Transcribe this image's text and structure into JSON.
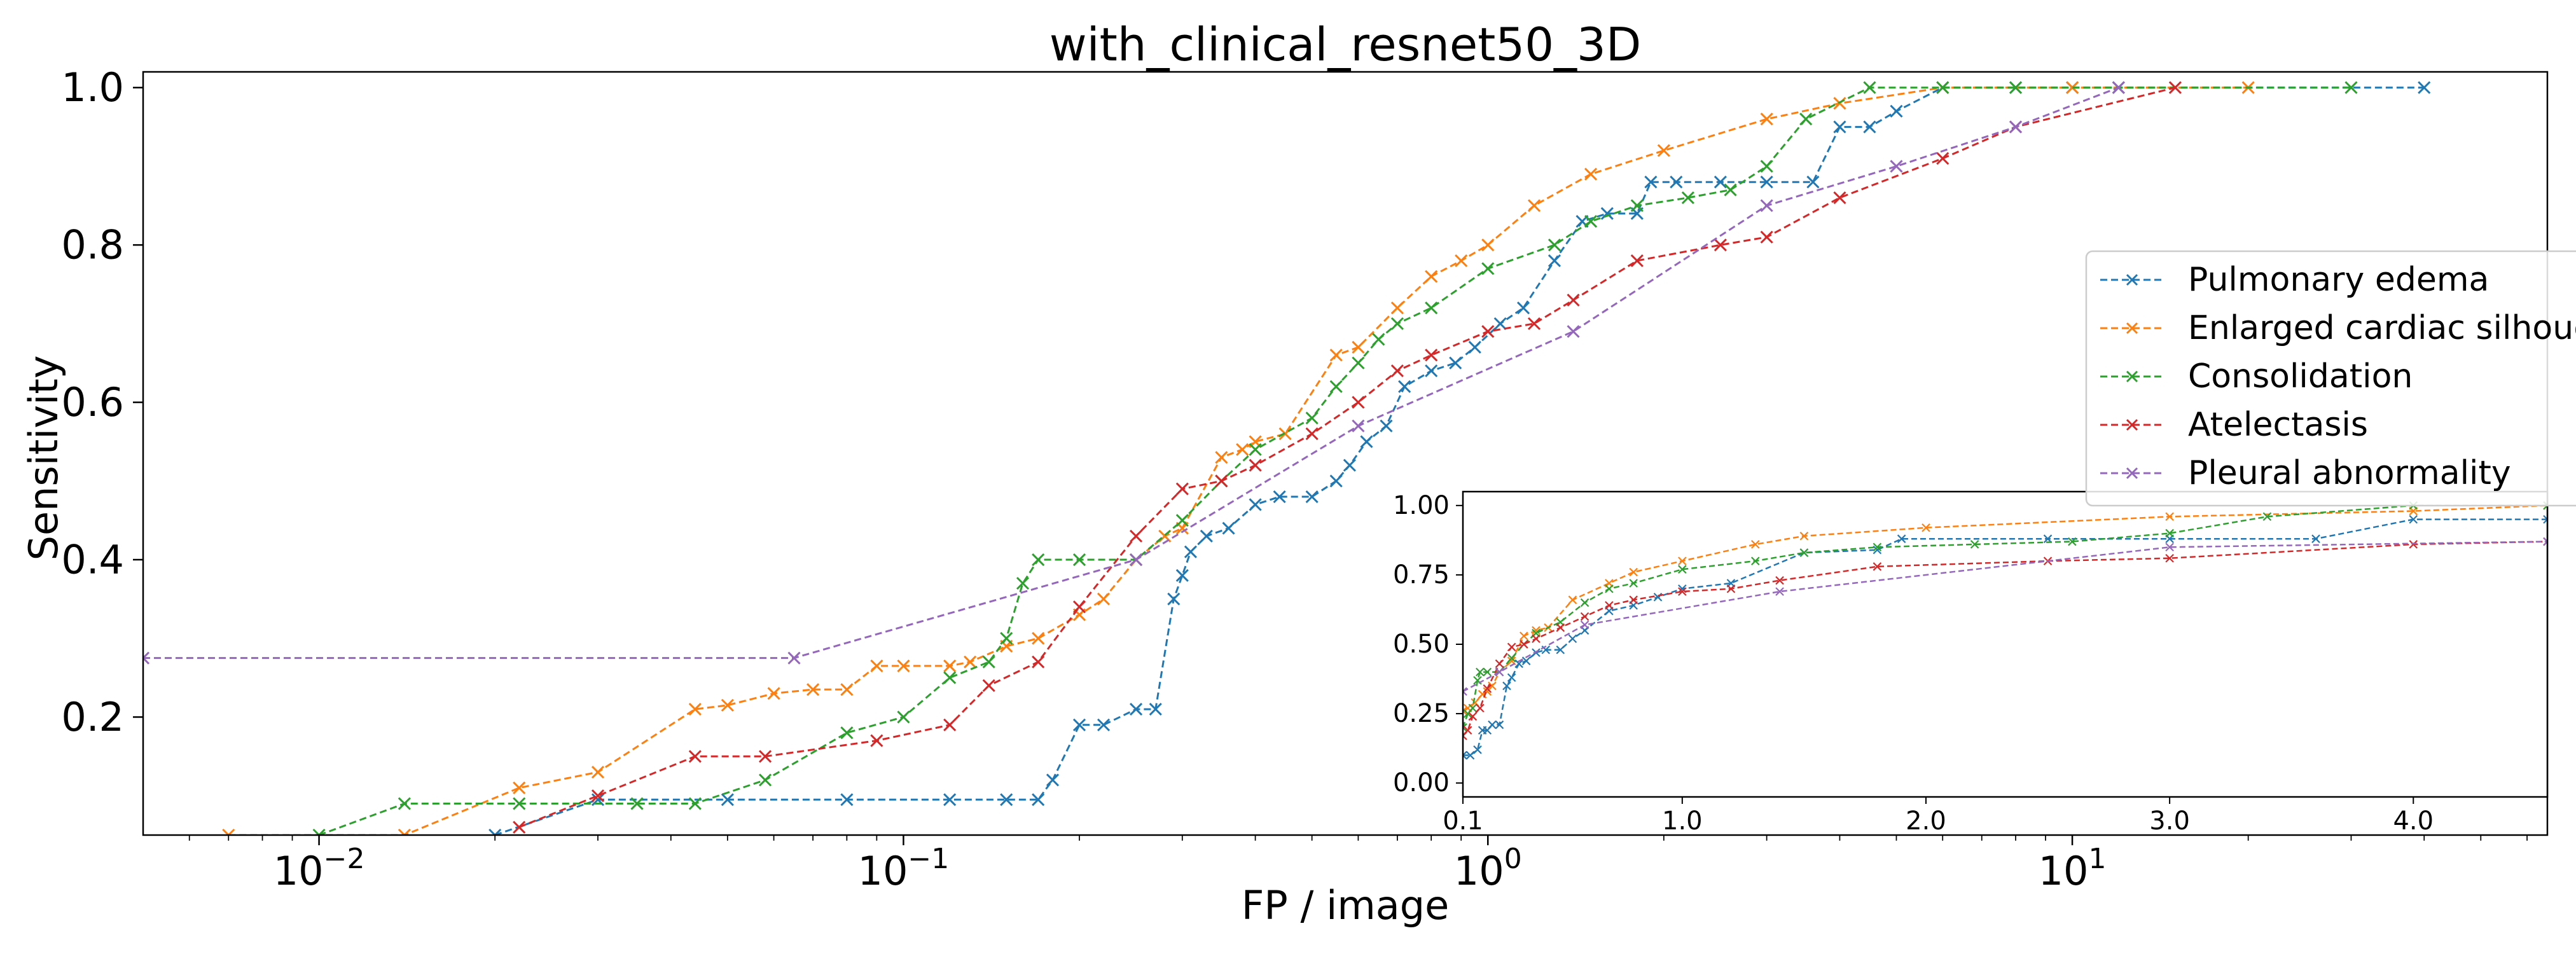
{
  "chart_data": [
    {
      "type": "line",
      "title": "with_clinical_resnet50_3D",
      "xlabel": "FP / image",
      "ylabel": "Sensitivity",
      "xscale": "log",
      "xlim": [
        0.005,
        65
      ],
      "ylim": [
        0.05,
        1.02
      ],
      "xticks": [
        {
          "value": 0.01,
          "base": "10",
          "exp": "−2"
        },
        {
          "value": 0.1,
          "base": "10",
          "exp": "−1"
        },
        {
          "value": 1,
          "base": "10",
          "exp": "0"
        },
        {
          "value": 10,
          "base": "10",
          "exp": "1"
        }
      ],
      "yticks": [
        {
          "value": 0.2,
          "label": "0.2"
        },
        {
          "value": 0.4,
          "label": "0.4"
        },
        {
          "value": 0.6,
          "label": "0.6"
        },
        {
          "value": 0.8,
          "label": "0.8"
        },
        {
          "value": 1.0,
          "label": "1.0"
        }
      ],
      "grid": false,
      "legend": {
        "position": "right",
        "clipped": true
      },
      "series": [
        {
          "name": "Pulmonary edema",
          "color": "#1f77b4",
          "x": [
            0.02,
            0.03,
            0.05,
            0.08,
            0.12,
            0.15,
            0.17,
            0.18,
            0.2,
            0.22,
            0.25,
            0.27,
            0.29,
            0.3,
            0.31,
            0.33,
            0.36,
            0.4,
            0.44,
            0.5,
            0.55,
            0.58,
            0.62,
            0.67,
            0.72,
            0.8,
            0.88,
            0.95,
            1.05,
            1.15,
            1.3,
            1.45,
            1.6,
            1.8,
            1.9,
            2.1,
            2.5,
            3,
            3.6,
            4,
            4.5,
            5,
            6,
            8,
            10,
            12,
            40
          ],
          "y": [
            0.05,
            0.095,
            0.095,
            0.095,
            0.095,
            0.095,
            0.095,
            0.12,
            0.19,
            0.19,
            0.21,
            0.21,
            0.35,
            0.38,
            0.41,
            0.43,
            0.44,
            0.47,
            0.48,
            0.48,
            0.5,
            0.52,
            0.55,
            0.57,
            0.62,
            0.64,
            0.65,
            0.67,
            0.7,
            0.72,
            0.78,
            0.83,
            0.84,
            0.84,
            0.88,
            0.88,
            0.88,
            0.88,
            0.88,
            0.95,
            0.95,
            0.97,
            1.0,
            1.0,
            1.0,
            1.0,
            1.0
          ]
        },
        {
          "name": "Enlarged cardiac silhouette",
          "color": "#ff7f0e",
          "x": [
            0.007,
            0.014,
            0.022,
            0.03,
            0.044,
            0.05,
            0.06,
            0.07,
            0.08,
            0.09,
            0.1,
            0.12,
            0.13,
            0.15,
            0.17,
            0.2,
            0.22,
            0.25,
            0.28,
            0.3,
            0.35,
            0.38,
            0.4,
            0.45,
            0.55,
            0.6,
            0.7,
            0.8,
            0.9,
            1.0,
            1.2,
            1.5,
            2,
            3,
            4,
            6,
            10,
            20
          ],
          "y": [
            0.05,
            0.05,
            0.11,
            0.13,
            0.21,
            0.215,
            0.23,
            0.235,
            0.235,
            0.265,
            0.265,
            0.265,
            0.27,
            0.29,
            0.3,
            0.33,
            0.35,
            0.4,
            0.43,
            0.44,
            0.53,
            0.54,
            0.55,
            0.56,
            0.66,
            0.67,
            0.72,
            0.76,
            0.78,
            0.8,
            0.85,
            0.89,
            0.92,
            0.96,
            0.98,
            1.0,
            1.0,
            1.0
          ]
        },
        {
          "name": "Consolidation",
          "color": "#2ca02c",
          "x": [
            0.01,
            0.014,
            0.022,
            0.035,
            0.044,
            0.058,
            0.08,
            0.1,
            0.12,
            0.14,
            0.15,
            0.16,
            0.17,
            0.2,
            0.25,
            0.3,
            0.35,
            0.4,
            0.5,
            0.55,
            0.6,
            0.65,
            0.7,
            0.8,
            1.0,
            1.3,
            1.5,
            1.8,
            2.2,
            2.6,
            3.0,
            3.5,
            4.5,
            6,
            8,
            12,
            30
          ],
          "y": [
            0.05,
            0.09,
            0.09,
            0.09,
            0.09,
            0.12,
            0.18,
            0.2,
            0.25,
            0.27,
            0.3,
            0.37,
            0.4,
            0.4,
            0.4,
            0.45,
            0.5,
            0.54,
            0.58,
            0.62,
            0.65,
            0.68,
            0.7,
            0.72,
            0.77,
            0.8,
            0.83,
            0.85,
            0.86,
            0.87,
            0.9,
            0.96,
            1.0,
            1.0,
            1.0,
            1.0,
            1.0
          ]
        },
        {
          "name": "Atelectasis",
          "color": "#d62728",
          "x": [
            0.022,
            0.03,
            0.044,
            0.058,
            0.09,
            0.12,
            0.14,
            0.17,
            0.2,
            0.25,
            0.3,
            0.35,
            0.4,
            0.5,
            0.6,
            0.7,
            0.8,
            1.0,
            1.2,
            1.4,
            1.8,
            2.5,
            3,
            4,
            6,
            8,
            15
          ],
          "y": [
            0.06,
            0.1,
            0.15,
            0.15,
            0.17,
            0.19,
            0.24,
            0.27,
            0.34,
            0.43,
            0.49,
            0.5,
            0.52,
            0.56,
            0.6,
            0.64,
            0.66,
            0.69,
            0.7,
            0.73,
            0.78,
            0.8,
            0.81,
            0.86,
            0.91,
            0.95,
            1.0
          ]
        },
        {
          "name": "Pleural abnormality",
          "color": "#9467bd",
          "x": [
            0.005,
            0.065,
            0.25,
            0.6,
            1.4,
            3,
            5,
            8,
            12
          ],
          "y": [
            0.275,
            0.275,
            0.4,
            0.57,
            0.69,
            0.85,
            0.9,
            0.95,
            1.0
          ]
        }
      ]
    },
    {
      "type": "line",
      "title": "",
      "xlabel": "",
      "ylabel": "",
      "xscale": "linear",
      "xlim": [
        0.1,
        4.55
      ],
      "ylim": [
        -0.05,
        1.05
      ],
      "xticks": [
        {
          "value": 0.1,
          "label": "0.1"
        },
        {
          "value": 1.0,
          "label": "1.0"
        },
        {
          "value": 2.0,
          "label": "2.0"
        },
        {
          "value": 3.0,
          "label": "3.0"
        },
        {
          "value": 4.0,
          "label": "4.0"
        }
      ],
      "yticks": [
        {
          "value": 0.0,
          "label": "0.00"
        },
        {
          "value": 0.25,
          "label": "0.25"
        },
        {
          "value": 0.5,
          "label": "0.50"
        },
        {
          "value": 0.75,
          "label": "0.75"
        },
        {
          "value": 1.0,
          "label": "1.00"
        }
      ],
      "grid": false,
      "series": [
        {
          "name": "Pulmonary edema",
          "color": "#1f77b4",
          "x": [
            0.1,
            0.13,
            0.16,
            0.18,
            0.2,
            0.22,
            0.25,
            0.28,
            0.3,
            0.33,
            0.36,
            0.4,
            0.44,
            0.5,
            0.55,
            0.6,
            0.7,
            0.8,
            0.9,
            1.0,
            1.2,
            1.5,
            1.8,
            1.9,
            2.5,
            3.0,
            3.6,
            4.0,
            4.55
          ],
          "y": [
            0.1,
            0.1,
            0.12,
            0.19,
            0.19,
            0.21,
            0.21,
            0.35,
            0.38,
            0.43,
            0.44,
            0.47,
            0.48,
            0.48,
            0.52,
            0.55,
            0.62,
            0.64,
            0.67,
            0.7,
            0.72,
            0.83,
            0.84,
            0.88,
            0.88,
            0.88,
            0.88,
            0.95,
            0.95
          ]
        },
        {
          "name": "Enlarged cardiac silhouette",
          "color": "#ff7f0e",
          "x": [
            0.1,
            0.12,
            0.15,
            0.18,
            0.2,
            0.22,
            0.25,
            0.3,
            0.35,
            0.4,
            0.45,
            0.55,
            0.7,
            0.8,
            1.0,
            1.3,
            1.5,
            2.0,
            3.0,
            4.0,
            4.55
          ],
          "y": [
            0.26,
            0.27,
            0.29,
            0.32,
            0.33,
            0.35,
            0.4,
            0.44,
            0.53,
            0.55,
            0.56,
            0.66,
            0.72,
            0.76,
            0.8,
            0.86,
            0.89,
            0.92,
            0.96,
            0.98,
            1.0
          ]
        },
        {
          "name": "Consolidation",
          "color": "#2ca02c",
          "x": [
            0.1,
            0.12,
            0.14,
            0.16,
            0.17,
            0.2,
            0.25,
            0.3,
            0.35,
            0.4,
            0.5,
            0.6,
            0.7,
            0.8,
            1.0,
            1.3,
            1.5,
            1.8,
            2.2,
            2.6,
            3.0,
            3.4,
            4.0,
            4.55
          ],
          "y": [
            0.2,
            0.25,
            0.27,
            0.37,
            0.4,
            0.4,
            0.4,
            0.45,
            0.5,
            0.54,
            0.58,
            0.65,
            0.7,
            0.72,
            0.77,
            0.8,
            0.83,
            0.85,
            0.86,
            0.87,
            0.9,
            0.96,
            1.0,
            1.0
          ]
        },
        {
          "name": "Atelectasis",
          "color": "#d62728",
          "x": [
            0.1,
            0.12,
            0.14,
            0.17,
            0.2,
            0.25,
            0.3,
            0.35,
            0.4,
            0.5,
            0.6,
            0.7,
            0.8,
            1.0,
            1.2,
            1.4,
            1.8,
            2.5,
            3.0,
            4.0,
            4.55
          ],
          "y": [
            0.17,
            0.19,
            0.24,
            0.27,
            0.34,
            0.43,
            0.49,
            0.5,
            0.52,
            0.56,
            0.6,
            0.64,
            0.66,
            0.69,
            0.7,
            0.73,
            0.78,
            0.8,
            0.81,
            0.86,
            0.87
          ]
        },
        {
          "name": "Pleural abnormality",
          "color": "#9467bd",
          "x": [
            0.1,
            0.25,
            0.6,
            1.4,
            3.0,
            4.55
          ],
          "y": [
            0.33,
            0.4,
            0.57,
            0.69,
            0.85,
            0.87
          ]
        }
      ]
    }
  ]
}
